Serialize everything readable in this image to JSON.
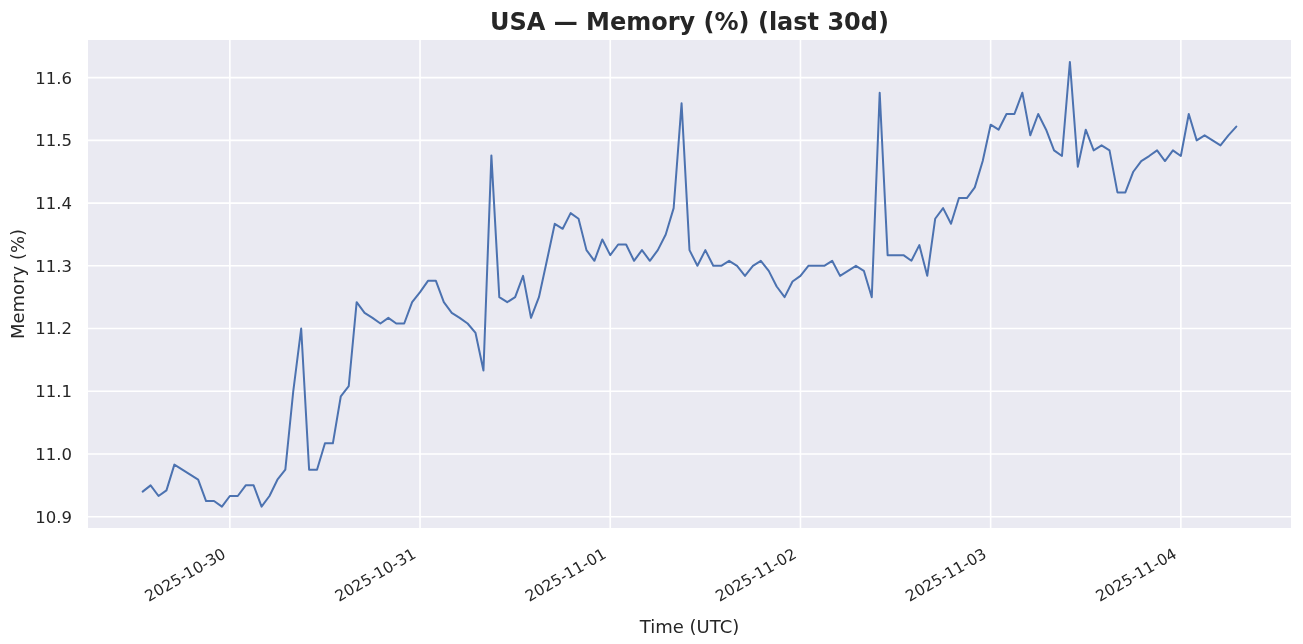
{
  "chart_data": {
    "type": "line",
    "title": "USA — Memory (%) (last 30d)",
    "xlabel": "Time (UTC)",
    "ylabel": "Memory (%)",
    "color": "#4c72b0",
    "grid": true,
    "x": [
      "2025-10-29T13:00",
      "2025-10-29T14:00",
      "2025-10-29T15:00",
      "2025-10-29T16:00",
      "2025-10-29T17:00",
      "2025-10-29T18:00",
      "2025-10-29T19:00",
      "2025-10-29T20:00",
      "2025-10-29T21:00",
      "2025-10-29T22:00",
      "2025-10-29T23:00",
      "2025-10-30T00:00",
      "2025-10-30T01:00",
      "2025-10-30T02:00",
      "2025-10-30T03:00",
      "2025-10-30T04:00",
      "2025-10-30T05:00",
      "2025-10-30T06:00",
      "2025-10-30T07:00",
      "2025-10-30T08:00",
      "2025-10-30T09:00",
      "2025-10-30T10:00",
      "2025-10-30T11:00",
      "2025-10-30T12:00",
      "2025-10-30T13:00",
      "2025-10-30T14:00",
      "2025-10-30T15:00",
      "2025-10-30T16:00",
      "2025-10-30T17:00",
      "2025-10-30T18:00",
      "2025-10-30T19:00",
      "2025-10-30T20:00",
      "2025-10-30T21:00",
      "2025-10-30T22:00",
      "2025-10-30T23:00",
      "2025-10-31T00:00",
      "2025-10-31T01:00",
      "2025-10-31T02:00",
      "2025-10-31T03:00",
      "2025-10-31T04:00",
      "2025-10-31T05:00",
      "2025-10-31T06:00",
      "2025-10-31T07:00",
      "2025-10-31T08:00",
      "2025-10-31T09:00",
      "2025-10-31T10:00",
      "2025-10-31T11:00",
      "2025-10-31T12:00",
      "2025-10-31T13:00",
      "2025-10-31T14:00",
      "2025-10-31T15:00",
      "2025-10-31T16:00",
      "2025-10-31T17:00",
      "2025-10-31T18:00",
      "2025-10-31T19:00",
      "2025-10-31T20:00",
      "2025-10-31T21:00",
      "2025-10-31T22:00",
      "2025-10-31T23:00",
      "2025-11-01T00:00",
      "2025-11-01T01:00",
      "2025-11-01T02:00",
      "2025-11-01T03:00",
      "2025-11-01T04:00",
      "2025-11-01T05:00",
      "2025-11-01T06:00",
      "2025-11-01T07:00",
      "2025-11-01T08:00",
      "2025-11-01T09:00",
      "2025-11-01T10:00",
      "2025-11-01T11:00",
      "2025-11-01T12:00",
      "2025-11-01T13:00",
      "2025-11-01T14:00",
      "2025-11-01T15:00",
      "2025-11-01T16:00",
      "2025-11-01T17:00",
      "2025-11-01T18:00",
      "2025-11-01T19:00",
      "2025-11-01T20:00",
      "2025-11-01T21:00",
      "2025-11-01T22:00",
      "2025-11-01T23:00",
      "2025-11-02T00:00",
      "2025-11-02T01:00",
      "2025-11-02T02:00",
      "2025-11-02T03:00",
      "2025-11-02T04:00",
      "2025-11-02T05:00",
      "2025-11-02T06:00",
      "2025-11-02T07:00",
      "2025-11-02T08:00",
      "2025-11-02T09:00",
      "2025-11-02T10:00",
      "2025-11-02T11:00",
      "2025-11-02T12:00",
      "2025-11-02T13:00",
      "2025-11-02T14:00",
      "2025-11-02T15:00",
      "2025-11-02T16:00",
      "2025-11-02T17:00",
      "2025-11-02T18:00",
      "2025-11-02T19:00",
      "2025-11-02T20:00",
      "2025-11-02T21:00",
      "2025-11-02T22:00",
      "2025-11-02T23:00",
      "2025-11-03T00:00",
      "2025-11-03T01:00",
      "2025-11-03T02:00",
      "2025-11-03T03:00",
      "2025-11-03T04:00",
      "2025-11-03T05:00",
      "2025-11-03T06:00",
      "2025-11-03T07:00",
      "2025-11-03T08:00",
      "2025-11-03T09:00",
      "2025-11-03T10:00",
      "2025-11-03T11:00",
      "2025-11-03T12:00",
      "2025-11-03T13:00",
      "2025-11-03T14:00",
      "2025-11-03T15:00",
      "2025-11-03T16:00",
      "2025-11-03T17:00",
      "2025-11-03T18:00",
      "2025-11-03T19:00",
      "2025-11-03T20:00",
      "2025-11-03T21:00",
      "2025-11-03T22:00",
      "2025-11-03T23:00",
      "2025-11-04T00:00",
      "2025-11-04T01:00",
      "2025-11-04T02:00",
      "2025-11-04T03:00",
      "2025-11-04T04:00",
      "2025-11-04T05:00",
      "2025-11-04T06:00",
      "2025-11-04T07:00"
    ],
    "values": [
      10.94,
      10.95,
      10.933,
      10.942,
      10.983,
      10.975,
      10.967,
      10.959,
      10.925,
      10.925,
      10.916,
      10.933,
      10.933,
      10.95,
      10.95,
      10.916,
      10.933,
      10.959,
      10.975,
      11.1,
      11.2,
      10.975,
      10.975,
      11.017,
      11.017,
      11.092,
      11.108,
      11.242,
      11.225,
      11.217,
      11.208,
      11.217,
      11.208,
      11.208,
      11.242,
      11.258,
      11.276,
      11.276,
      11.242,
      11.225,
      11.217,
      11.208,
      11.193,
      11.133,
      11.476,
      11.25,
      11.242,
      11.25,
      11.284,
      11.217,
      11.25,
      11.308,
      11.367,
      11.359,
      11.384,
      11.375,
      11.325,
      11.308,
      11.342,
      11.317,
      11.334,
      11.334,
      11.308,
      11.325,
      11.308,
      11.325,
      11.35,
      11.392,
      11.559,
      11.325,
      11.3,
      11.325,
      11.3,
      11.3,
      11.308,
      11.3,
      11.284,
      11.3,
      11.308,
      11.292,
      11.267,
      11.25,
      11.275,
      11.284,
      11.3,
      11.3,
      11.3,
      11.308,
      11.284,
      11.292,
      11.3,
      11.292,
      11.25,
      11.576,
      11.317,
      11.317,
      11.317,
      11.308,
      11.333,
      11.284,
      11.375,
      11.392,
      11.367,
      11.408,
      11.408,
      11.425,
      11.467,
      11.525,
      11.517,
      11.542,
      11.542,
      11.576,
      11.508,
      11.542,
      11.517,
      11.484,
      11.475,
      11.625,
      11.458,
      11.517,
      11.484,
      11.492,
      11.484,
      11.417,
      11.417,
      11.45,
      11.467,
      11.475,
      11.484,
      11.467,
      11.484,
      11.475,
      11.542,
      11.5,
      11.508,
      11.5,
      11.492,
      11.508,
      11.522
    ],
    "xlim": [
      "2025-10-29T06:06",
      "2025-11-04T13:54"
    ],
    "xticks": [
      "2025-10-30",
      "2025-10-31",
      "2025-11-01",
      "2025-11-02",
      "2025-11-03",
      "2025-11-04"
    ],
    "ylim": [
      10.882,
      11.66
    ],
    "yticks": [
      10.9,
      {
        "value": 11,
        "label": "11.0"
      },
      11.1,
      11.2,
      11.3,
      11.4,
      11.5,
      11.6
    ]
  }
}
